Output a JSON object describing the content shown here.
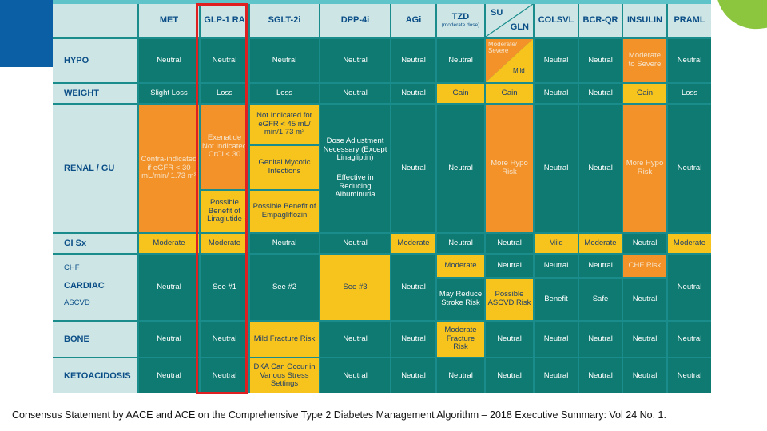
{
  "columns": [
    {
      "id": "met",
      "label": "MET"
    },
    {
      "id": "glp1",
      "label": "GLP-1 RA"
    },
    {
      "id": "sglt2",
      "label": "SGLT-2i"
    },
    {
      "id": "dpp4",
      "label": "DPP-4i"
    },
    {
      "id": "agi",
      "label": "AGi"
    },
    {
      "id": "tzd",
      "label": "TZD",
      "sub": "(moderate dose)"
    },
    {
      "id": "su",
      "label": "SU",
      "sub": "GLN"
    },
    {
      "id": "colsvl",
      "label": "COLSVL"
    },
    {
      "id": "bcrqr",
      "label": "BCR-QR"
    },
    {
      "id": "insulin",
      "label": "INSULIN"
    },
    {
      "id": "pram",
      "label": "PRAML"
    }
  ],
  "rows": {
    "hypo": {
      "label": "HYPO",
      "cells": [
        "Neutral",
        "Neutral",
        "Neutral",
        "Neutral",
        "Neutral",
        "Neutral",
        "",
        "Neutral",
        "Neutral",
        "Moderate to Severe",
        "Neutral"
      ]
    },
    "weight": {
      "label": "WEIGHT",
      "cells": [
        "Slight Loss",
        "Loss",
        "Loss",
        "Neutral",
        "Neutral",
        "Gain",
        "Gain",
        "Neutral",
        "Neutral",
        "Gain",
        "Loss"
      ]
    },
    "renal": {
      "label": "RENAL / GU",
      "cells": [
        "Contra-indicated if eGFR < 30 mL/min/ 1.73 m²",
        "",
        "",
        "",
        "Neutral",
        "Neutral",
        "More Hypo Risk",
        "Neutral",
        "Neutral",
        "More Hypo Risk",
        "Neutral"
      ],
      "glp1_top": "Exenatide Not Indicated CrCl < 30",
      "glp1_bottom": "Possible Benefit of Liraglutide",
      "sglt2_a": "Not Indicated for eGFR < 45 mL/ min/1.73 m²",
      "sglt2_b": "Genital Mycotic Infections",
      "sglt2_c": "Possible Benefit of Empagliflozin",
      "dpp4_a": "Dose Adjustment Necessary (Except Linagliptin)",
      "dpp4_b": "Effective in Reducing Albuminuria"
    },
    "gi": {
      "label": "GI Sx",
      "cells": [
        "Moderate",
        "Moderate",
        "Neutral",
        "Neutral",
        "Moderate",
        "Neutral",
        "Neutral",
        "Mild",
        "Moderate",
        "Neutral",
        "Moderate"
      ]
    },
    "cardiac": {
      "label": "CARDIAC",
      "chf": "CHF",
      "ascvd": "ASCVD",
      "met": "Neutral",
      "glp1": "See #1",
      "sglt2": "See #2",
      "dpp4": "See #3",
      "agi": "Neutral",
      "tzd_chf": "Moderate",
      "tzd_ascvd": "May Reduce Stroke Risk",
      "su_chf": "Neutral",
      "su_ascvd": "Possible ASCVD Risk",
      "colsvl_chf": "Neutral",
      "colsvl_ascvd": "Benefit",
      "bcrqr_chf": "Neutral",
      "bcrqr_ascvd": "Safe",
      "insulin_chf": "CHF Risk",
      "insulin_ascvd": "Neutral",
      "pram": "Neutral"
    },
    "bone": {
      "label": "BONE",
      "cells": [
        "Neutral",
        "Neutral",
        "Mild Fracture Risk",
        "Neutral",
        "Neutral",
        "Moderate Fracture Risk",
        "Neutral",
        "Neutral",
        "Neutral",
        "Neutral",
        "Neutral"
      ]
    },
    "keto": {
      "label": "KETOACIDOSIS",
      "cells": [
        "Neutral",
        "Neutral",
        "DKA Can Occur in Various Stress Settings",
        "Neutral",
        "Neutral",
        "Neutral",
        "Neutral",
        "Neutral",
        "Neutral",
        "Neutral",
        "Neutral"
      ]
    }
  },
  "su_hypo": {
    "upper": "Moderate/ Severe",
    "lower": "Mild"
  },
  "caption": "Consensus Statement by AACE and ACE on the Comprehensive Type 2 Diabetes Management Algorithm – 2018 Executive Summary: Vol 24 No. 1."
}
